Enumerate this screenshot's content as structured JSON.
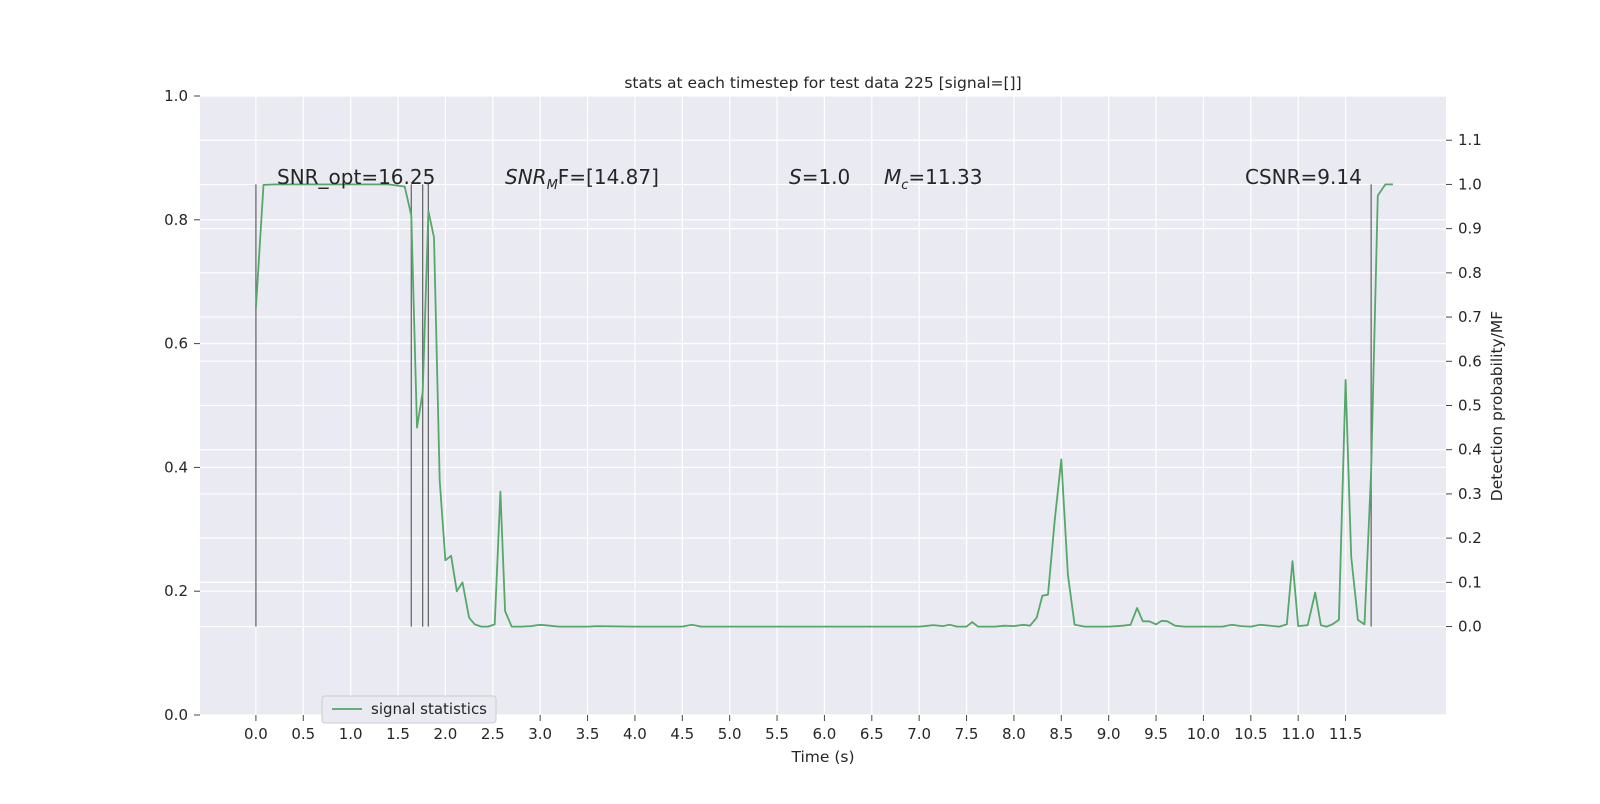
{
  "chart_data": {
    "type": "line",
    "title": "stats at each timestep for test data 225 [signal=[]]",
    "xlabel": "Time (s)",
    "ylabel": "",
    "y2label": "Detection probability/MF",
    "xlim": [
      -0.59,
      12.56
    ],
    "ylim": [
      0.0,
      1.0
    ],
    "y2lim": [
      -0.2,
      1.2
    ],
    "x_ticks": [
      "0.0",
      "0.5",
      "1.0",
      "1.5",
      "2.0",
      "2.5",
      "3.0",
      "3.5",
      "4.0",
      "4.5",
      "5.0",
      "5.5",
      "6.0",
      "6.5",
      "7.0",
      "7.5",
      "8.0",
      "8.5",
      "9.0",
      "9.5",
      "10.0",
      "10.5",
      "11.0",
      "11.5"
    ],
    "y_ticks": [
      "0.0",
      "0.2",
      "0.4",
      "0.6",
      "0.8",
      "1.0"
    ],
    "y2_ticks": [
      "0.0",
      "0.1",
      "0.2",
      "0.3",
      "0.4",
      "0.5",
      "0.6",
      "0.7",
      "0.8",
      "0.9",
      "1.0",
      "1.1"
    ],
    "grid": true,
    "legend_position": "lower-left",
    "annotations": {
      "snr_opt": "SNR_opt=16.25",
      "snr_mf_main": "SNR",
      "snr_mf_sub": "M",
      "snr_mf_rest": "F=[14.87]",
      "s_main": "S",
      "s_rest": "=1.0",
      "mc_main": "M",
      "mc_sub": "c",
      "mc_rest": "=11.33",
      "csnr": "CSNR=9.14"
    },
    "vertical_lines_x": [
      0.0,
      1.64,
      1.76,
      1.82,
      11.77
    ],
    "vertical_lines_top": 1.0,
    "series": [
      {
        "name": "signal statistics",
        "color": "#55a868",
        "axis": "right",
        "x": [
          0.0,
          0.08,
          0.2,
          0.4,
          0.6,
          0.8,
          1.0,
          1.2,
          1.4,
          1.57,
          1.64,
          1.7,
          1.76,
          1.82,
          1.88,
          1.94,
          2.0,
          2.06,
          2.12,
          2.18,
          2.25,
          2.31,
          2.38,
          2.45,
          2.52,
          2.58,
          2.63,
          2.7,
          2.8,
          2.9,
          3.0,
          3.1,
          3.2,
          3.5,
          3.6,
          4.0,
          4.5,
          4.6,
          4.7,
          5.0,
          5.5,
          6.0,
          6.5,
          7.0,
          7.15,
          7.25,
          7.32,
          7.4,
          7.5,
          7.56,
          7.62,
          7.8,
          7.9,
          8.0,
          8.1,
          8.17,
          8.24,
          8.3,
          8.36,
          8.43,
          8.5,
          8.57,
          8.64,
          8.75,
          9.0,
          9.15,
          9.23,
          9.3,
          9.36,
          9.43,
          9.5,
          9.56,
          9.62,
          9.7,
          9.8,
          10.0,
          10.2,
          10.3,
          10.4,
          10.5,
          10.6,
          10.8,
          10.88,
          10.94,
          11.0,
          11.1,
          11.18,
          11.24,
          11.3,
          11.36,
          11.43,
          11.5,
          11.56,
          11.63,
          11.7,
          11.77,
          11.84,
          11.92,
          12.0
        ],
        "y": [
          0.72,
          0.999,
          1.0,
          1.0,
          1.0,
          1.0,
          1.0,
          1.0,
          1.0,
          0.995,
          0.93,
          0.45,
          0.53,
          0.94,
          0.88,
          0.33,
          0.15,
          0.16,
          0.08,
          0.1,
          0.02,
          0.005,
          0.0,
          0.0,
          0.005,
          0.305,
          0.035,
          0.0,
          0.0,
          0.001,
          0.004,
          0.002,
          0.0,
          0.0,
          0.001,
          0.0,
          0.0,
          0.004,
          0.0,
          0.0,
          0.0,
          0.0,
          0.0,
          0.0,
          0.003,
          0.001,
          0.004,
          0.0,
          0.0,
          0.01,
          0.0,
          0.0,
          0.002,
          0.001,
          0.004,
          0.002,
          0.02,
          0.07,
          0.072,
          0.24,
          0.378,
          0.117,
          0.004,
          0.0,
          0.0,
          0.002,
          0.004,
          0.042,
          0.012,
          0.012,
          0.005,
          0.013,
          0.012,
          0.002,
          0.0,
          0.0,
          0.0,
          0.004,
          0.001,
          0.0,
          0.004,
          0.0,
          0.005,
          0.148,
          0.001,
          0.003,
          0.077,
          0.003,
          0.0,
          0.005,
          0.015,
          0.558,
          0.158,
          0.015,
          0.005,
          0.35,
          0.975,
          1.0,
          1.0
        ]
      }
    ]
  }
}
